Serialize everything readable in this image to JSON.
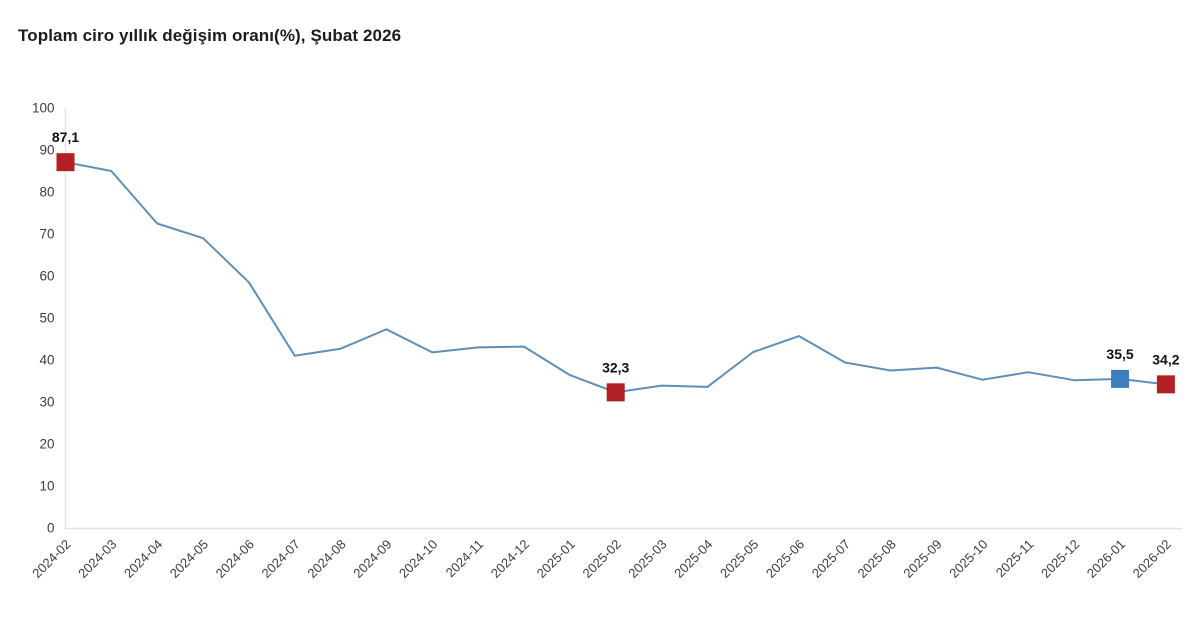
{
  "title": "Toplam ciro yıllık değişim oranı(%), Şubat 2026",
  "colors": {
    "line": "#5f8fb9",
    "marker_red": "#b21f24",
    "marker_blue": "#3d7ebf",
    "axis": "#e4e4e4",
    "tick_text": "#3d3d3d",
    "value_label_text": "#111111"
  },
  "chart_data": {
    "type": "line",
    "title": "Toplam ciro yıllık değişim oranı(%), Şubat 2026",
    "x": [
      "2024-02",
      "2024-03",
      "2024-04",
      "2024-05",
      "2024-06",
      "2024-07",
      "2024-08",
      "2024-09",
      "2024-10",
      "2024-11",
      "2024-12",
      "2025-01",
      "2025-02",
      "2025-03",
      "2025-04",
      "2025-05",
      "2025-06",
      "2025-07",
      "2025-08",
      "2025-09",
      "2025-10",
      "2025-11",
      "2025-12",
      "2026-01",
      "2026-02"
    ],
    "series": [
      {
        "name": "Toplam ciro yıllık değişim oranı (%)",
        "values": [
          87.1,
          85.0,
          72.5,
          69.0,
          58.5,
          41.0,
          42.7,
          47.3,
          41.8,
          43.0,
          43.2,
          36.4,
          32.3,
          33.9,
          33.6,
          41.9,
          45.7,
          39.4,
          37.5,
          38.2,
          35.3,
          37.1,
          35.2,
          35.5,
          34.2
        ]
      }
    ],
    "xlabel": "",
    "ylabel": "",
    "ylim": [
      0,
      100
    ],
    "yticks": [
      0,
      10,
      20,
      30,
      40,
      50,
      60,
      70,
      80,
      90,
      100
    ],
    "grid": false,
    "legend_position": "none",
    "x_tick_rotation": -45,
    "annotations": [
      {
        "x": "2024-02",
        "value": 87.1,
        "label": "87,1",
        "marker": "square",
        "color": "#b21f24"
      },
      {
        "x": "2025-02",
        "value": 32.3,
        "label": "32,3",
        "marker": "square",
        "color": "#b21f24"
      },
      {
        "x": "2026-01",
        "value": 35.5,
        "label": "35,5",
        "marker": "square",
        "color": "#3d7ebf"
      },
      {
        "x": "2026-02",
        "value": 34.2,
        "label": "34,2",
        "marker": "square",
        "color": "#b21f24"
      }
    ]
  }
}
